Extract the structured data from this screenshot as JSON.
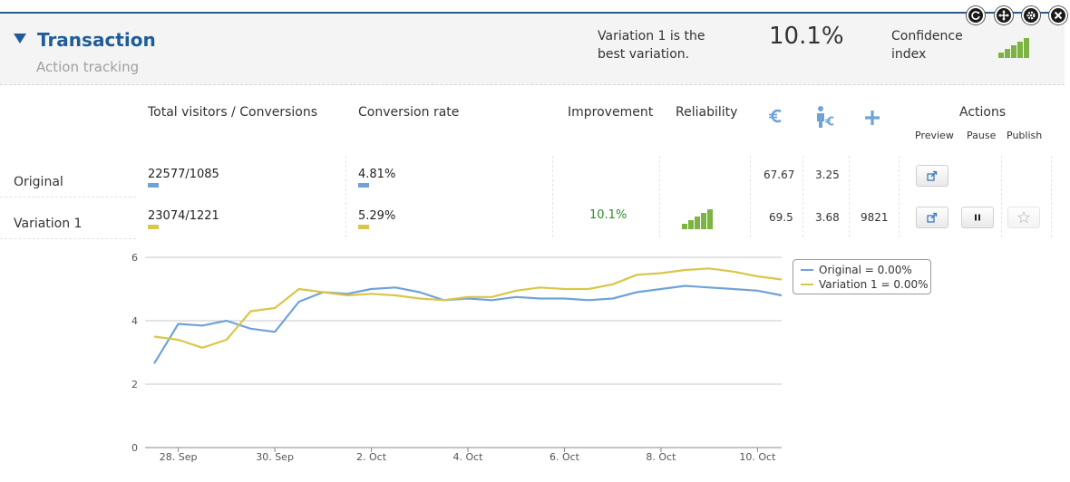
{
  "header": {
    "goal_title": "Transaction",
    "goal_subtitle": "Action tracking",
    "best_variation_name": "Variation 1",
    "best_variation_suffix": "is the",
    "best_variation_line2": "best variation.",
    "best_value": "10.1%",
    "confidence_label_line1": "Confidence",
    "confidence_label_line2": "index",
    "confidence_level": 5,
    "confidence_max": 5,
    "controls": [
      "refresh-icon",
      "move-icon",
      "gear-icon",
      "close-icon"
    ]
  },
  "columns": {
    "visitors_conversions": "Total visitors / Conversions",
    "conversion_rate": "Conversion rate",
    "improvement": "Improvement",
    "reliability": "Reliability",
    "revenue_icon": "euro-icon",
    "revenue_per_visitor_icon": "visitor-euro-icon",
    "extra_icon": "plus-icon",
    "actions": "Actions",
    "preview": "Preview",
    "pause": "Pause",
    "publish": "Publish"
  },
  "rows": [
    {
      "label": "Original",
      "visitors_conversions": "22577/1085",
      "conversion_rate": "4.81%",
      "improvement": "",
      "reliability_level": 0,
      "revenue": "67.67",
      "revenue_per_visitor": "3.25",
      "extra": "",
      "color": "#6fa3d8",
      "actions": [
        "preview"
      ]
    },
    {
      "label": "Variation 1",
      "visitors_conversions": "23074/1221",
      "conversion_rate": "5.29%",
      "improvement": "10.1%",
      "reliability_level": 5,
      "revenue": "69.5",
      "revenue_per_visitor": "3.68",
      "extra": "9821",
      "color": "#d9c64a",
      "actions": [
        "preview",
        "pause",
        "publish"
      ]
    }
  ],
  "colors": {
    "title_blue": "#1f5c99",
    "original": "#6fa3d8",
    "variation": "#d9c64a",
    "bar_green": "#7cb342",
    "improvement_green": "#2e8b2e"
  },
  "chart_data": {
    "type": "line",
    "title": "",
    "xlabel": "",
    "ylabel": "",
    "ylim": [
      0,
      6
    ],
    "yticks": [
      0,
      2,
      4,
      6
    ],
    "grid": true,
    "legend_position": "top-right",
    "xtick_labels": [
      "28. Sep",
      "30. Sep",
      "2. Oct",
      "4. Oct",
      "6. Oct",
      "8. Oct",
      "10. Oct"
    ],
    "x": [
      "27. Sep 12h",
      "28. Sep 00h",
      "28. Sep 12h",
      "29. Sep 00h",
      "29. Sep 12h",
      "30. Sep 00h",
      "30. Sep 12h",
      "1. Oct 00h",
      "1. Oct 12h",
      "2. Oct 00h",
      "2. Oct 12h",
      "3. Oct 00h",
      "3. Oct 12h",
      "4. Oct 00h",
      "4. Oct 12h",
      "5. Oct 00h",
      "5. Oct 12h",
      "6. Oct 00h",
      "6. Oct 12h",
      "7. Oct 00h",
      "7. Oct 12h",
      "8. Oct 00h",
      "8. Oct 12h",
      "9. Oct 00h",
      "9. Oct 12h",
      "10. Oct 00h",
      "10. Oct 12h"
    ],
    "series": [
      {
        "name": "Original = 0.00%",
        "color": "#6fa3d8",
        "values": [
          2.65,
          3.9,
          3.85,
          4.0,
          3.75,
          3.65,
          4.6,
          4.9,
          4.85,
          5.0,
          5.05,
          4.9,
          4.65,
          4.7,
          4.65,
          4.75,
          4.7,
          4.7,
          4.65,
          4.7,
          4.9,
          5.0,
          5.1,
          5.05,
          5.0,
          4.95,
          4.8
        ]
      },
      {
        "name": "Variation 1 = 0.00%",
        "color": "#d9c64a",
        "values": [
          3.5,
          3.4,
          3.15,
          3.4,
          4.3,
          4.4,
          5.0,
          4.9,
          4.8,
          4.85,
          4.8,
          4.7,
          4.65,
          4.75,
          4.75,
          4.95,
          5.05,
          5.0,
          5.0,
          5.15,
          5.45,
          5.5,
          5.6,
          5.65,
          5.55,
          5.4,
          5.3
        ]
      }
    ]
  }
}
